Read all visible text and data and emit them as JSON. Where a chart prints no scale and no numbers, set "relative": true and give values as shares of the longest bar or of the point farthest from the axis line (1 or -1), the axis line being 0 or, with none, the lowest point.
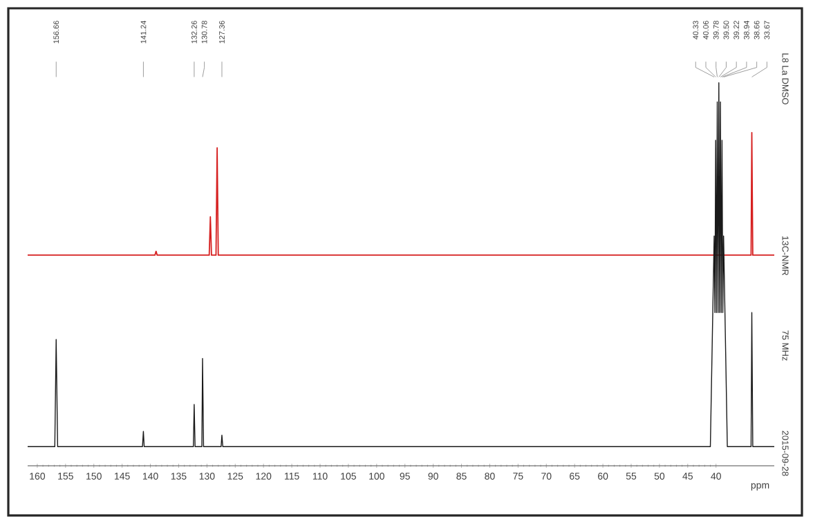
{
  "chart_data": {
    "type": "line",
    "relative": true,
    "xlabel": "ppm",
    "xlim": [
      161.7,
      29.7
    ],
    "xticks": [
      160,
      155,
      150,
      145,
      140,
      135,
      130,
      125,
      120,
      115,
      110,
      105,
      100,
      95,
      90,
      85,
      80,
      75,
      70,
      65,
      60,
      55,
      50,
      45,
      40
    ],
    "series": [
      {
        "color": "#d62020",
        "x": [
          161.7,
          139.2,
          139.0,
          138.8,
          129.6,
          129.4,
          129.2,
          128.4,
          128.2,
          128.0,
          33.8,
          33.67,
          33.5,
          29.7
        ],
        "values": [
          0.55,
          0.55,
          0.56,
          0.55,
          0.55,
          0.65,
          0.55,
          0.55,
          0.83,
          0.55,
          0.55,
          0.87,
          0.55,
          0.55
        ]
      },
      {
        "color": "#1a1a1a",
        "x": [
          161.7,
          156.9,
          156.66,
          156.4,
          141.4,
          141.24,
          141.1,
          132.4,
          132.26,
          132.1,
          130.9,
          130.78,
          130.6,
          127.5,
          127.36,
          127.2,
          41.0,
          40.33,
          40.2,
          40.06,
          39.92,
          39.78,
          39.64,
          39.5,
          39.36,
          39.22,
          39.08,
          38.94,
          38.8,
          38.66,
          38.0,
          33.8,
          33.67,
          33.5,
          29.7
        ],
        "values": [
          0.05,
          0.05,
          0.33,
          0.05,
          0.05,
          0.09,
          0.05,
          0.05,
          0.16,
          0.05,
          0.05,
          0.28,
          0.05,
          0.05,
          0.08,
          0.05,
          0.05,
          0.6,
          0.4,
          0.85,
          0.4,
          0.95,
          0.4,
          1.0,
          0.4,
          0.95,
          0.4,
          0.85,
          0.4,
          0.6,
          0.05,
          0.05,
          0.4,
          0.05,
          0.05
        ]
      }
    ],
    "annotations": [
      "156.66",
      "141.24",
      "132.26",
      "130.78",
      "127.36",
      "40.33",
      "40.06",
      "39.78",
      "39.50",
      "39.22",
      "38.94",
      "38.66",
      "33.67",
      "L8 La DMSO",
      "13C-NMR",
      "75 MHz",
      "2015-09-28"
    ]
  }
}
